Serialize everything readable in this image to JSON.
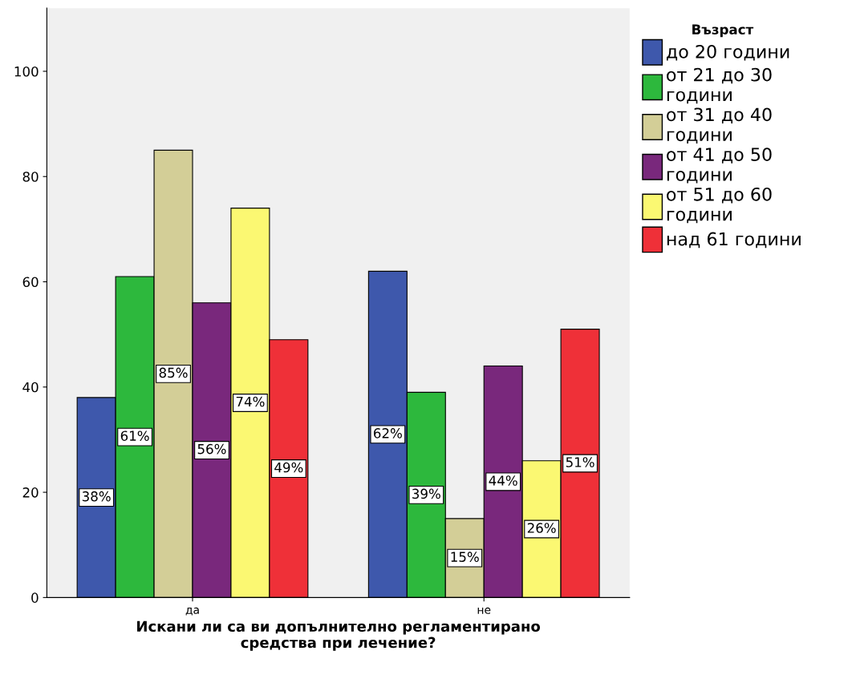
{
  "chart_data": {
    "type": "bar",
    "xlabel": "Искани ли са ви допълнително регламентирано\nсредства при лечение?",
    "legend_title": "Възраст",
    "categories": [
      "да",
      "не"
    ],
    "series": [
      {
        "name": "до 20 години",
        "color": "#3e58ac",
        "values": [
          38,
          62
        ],
        "value_labels": [
          "38%",
          "62%"
        ]
      },
      {
        "name": "от 21 до 30\nгодини",
        "color": "#2db83d",
        "values": [
          61,
          39
        ],
        "value_labels": [
          "61%",
          "39%"
        ]
      },
      {
        "name": "от 31 до 40\nгодини",
        "color": "#d3ce97",
        "values": [
          85,
          15
        ],
        "value_labels": [
          "85%",
          "15%"
        ]
      },
      {
        "name": "от 41 до 50\nгодини",
        "color": "#79287c",
        "values": [
          56,
          44
        ],
        "value_labels": [
          "56%",
          "44%"
        ]
      },
      {
        "name": "от 51 до 60\nгодини",
        "color": "#fbf872",
        "values": [
          74,
          26
        ],
        "value_labels": [
          "74%",
          "26%"
        ]
      },
      {
        "name": "над 61 години",
        "color": "#ef3038",
        "values": [
          49,
          51
        ],
        "value_labels": [
          "49%",
          "51%"
        ]
      }
    ],
    "ylim": [
      0,
      112
    ],
    "yticks": [
      0,
      20,
      40,
      60,
      80,
      100
    ],
    "grid": false,
    "legend": "right"
  }
}
